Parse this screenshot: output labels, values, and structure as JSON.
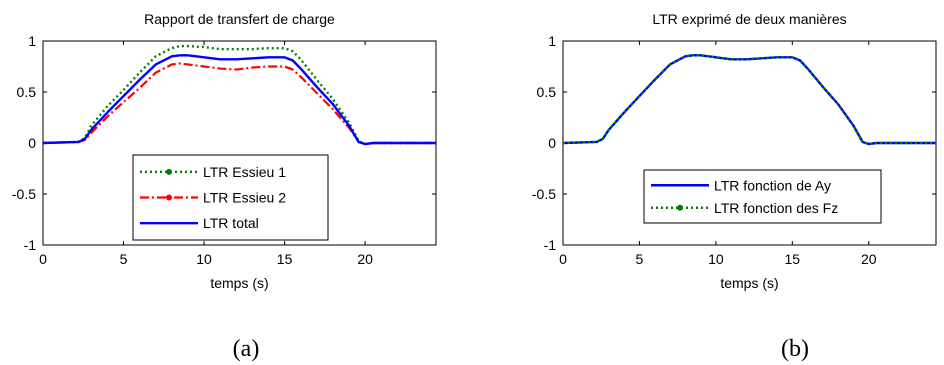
{
  "chart_data": [
    {
      "type": "line",
      "caption": "(a)",
      "title": "Rapport de transfert de charge",
      "xlabel": "temps (s)",
      "ylabel": "",
      "xlim": [
        0,
        24.4
      ],
      "ylim": [
        -1,
        1
      ],
      "xticks": [
        "0",
        "5",
        "10",
        "15",
        "20"
      ],
      "yticks": [
        "-1",
        "-0.5",
        "0",
        "0.5",
        "1"
      ],
      "grid": false,
      "legend_position": "bottom-center",
      "series": [
        {
          "name": "LTR Essieu 1",
          "color": "#008000",
          "style": "dotted-marker",
          "x": [
            0,
            2.2,
            2.6,
            3,
            4,
            5,
            6,
            7,
            8,
            8.5,
            9,
            10,
            11,
            12,
            13,
            14,
            15,
            15.5,
            16,
            17,
            18,
            19,
            19.6,
            20,
            20.5,
            24.4
          ],
          "y": [
            0,
            0.01,
            0.05,
            0.17,
            0.36,
            0.52,
            0.69,
            0.85,
            0.93,
            0.95,
            0.95,
            0.94,
            0.92,
            0.92,
            0.92,
            0.93,
            0.93,
            0.9,
            0.82,
            0.62,
            0.43,
            0.2,
            0.02,
            -0.01,
            0,
            0
          ]
        },
        {
          "name": "LTR Essieu 2",
          "color": "#ff0000",
          "style": "dashdot-marker",
          "x": [
            0,
            2.2,
            2.6,
            3,
            4,
            5,
            6,
            7,
            8,
            8.5,
            9,
            10,
            11,
            12,
            13,
            14,
            15,
            15.5,
            16,
            17,
            18,
            19,
            19.6,
            20,
            20.5,
            24.4
          ],
          "y": [
            0,
            0.01,
            0.03,
            0.1,
            0.26,
            0.4,
            0.54,
            0.69,
            0.77,
            0.78,
            0.77,
            0.75,
            0.73,
            0.72,
            0.74,
            0.75,
            0.75,
            0.72,
            0.65,
            0.49,
            0.33,
            0.15,
            0.01,
            -0.01,
            0,
            0
          ]
        },
        {
          "name": "LTR total",
          "color": "#0000ff",
          "style": "solid",
          "x": [
            0,
            2.2,
            2.6,
            3,
            4,
            5,
            6,
            7,
            8,
            8.5,
            9,
            10,
            11,
            12,
            13,
            14,
            15,
            15.5,
            16,
            17,
            18,
            19,
            19.6,
            20,
            20.5,
            24.4
          ],
          "y": [
            0,
            0.01,
            0.04,
            0.13,
            0.3,
            0.46,
            0.62,
            0.77,
            0.85,
            0.86,
            0.86,
            0.84,
            0.82,
            0.82,
            0.83,
            0.84,
            0.84,
            0.81,
            0.73,
            0.55,
            0.38,
            0.17,
            0.01,
            -0.01,
            0,
            0
          ]
        }
      ]
    },
    {
      "type": "line",
      "caption": "(b)",
      "title": "LTR exprimé de deux manières",
      "xlabel": "temps (s)",
      "ylabel": "",
      "xlim": [
        0,
        24.4
      ],
      "ylim": [
        -1,
        1
      ],
      "xticks": [
        "0",
        "5",
        "10",
        "15",
        "20"
      ],
      "yticks": [
        "-1",
        "-0.5",
        "0",
        "0.5",
        "1"
      ],
      "grid": false,
      "legend_position": "bottom-center",
      "series": [
        {
          "name": "LTR fonction de Ay",
          "color": "#0000ff",
          "style": "solid",
          "x": [
            0,
            2.2,
            2.6,
            3,
            4,
            5,
            6,
            7,
            8,
            8.5,
            9,
            10,
            11,
            12,
            13,
            14,
            15,
            15.5,
            16,
            17,
            18,
            19,
            19.6,
            20,
            20.5,
            24.4
          ],
          "y": [
            0,
            0.01,
            0.04,
            0.13,
            0.3,
            0.46,
            0.62,
            0.77,
            0.85,
            0.86,
            0.86,
            0.84,
            0.82,
            0.82,
            0.83,
            0.84,
            0.84,
            0.81,
            0.73,
            0.55,
            0.38,
            0.17,
            0.01,
            -0.01,
            0,
            0
          ]
        },
        {
          "name": "LTR fonction des Fz",
          "color": "#008000",
          "style": "dotted-marker",
          "x": [
            0,
            2.2,
            2.6,
            3,
            4,
            5,
            6,
            7,
            8,
            8.5,
            9,
            10,
            11,
            12,
            13,
            14,
            15,
            15.5,
            16,
            17,
            18,
            19,
            19.6,
            20,
            20.5,
            24.4
          ],
          "y": [
            0,
            0.01,
            0.04,
            0.13,
            0.3,
            0.46,
            0.62,
            0.77,
            0.85,
            0.86,
            0.86,
            0.84,
            0.82,
            0.82,
            0.83,
            0.84,
            0.84,
            0.81,
            0.73,
            0.55,
            0.38,
            0.17,
            0.01,
            -0.01,
            0,
            0
          ]
        }
      ]
    }
  ]
}
